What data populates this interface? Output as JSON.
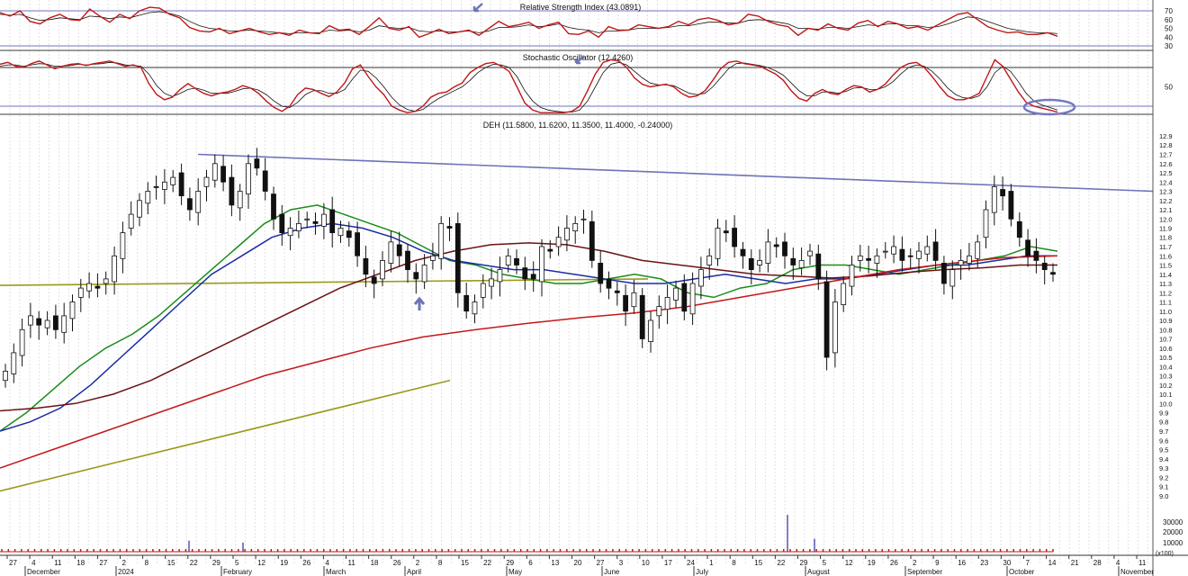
{
  "chart_data": [
    {
      "type": "line",
      "panel": "rsi",
      "title": "Relative Strength Index (43.0891)",
      "y_ticks": [
        70,
        60,
        50,
        40,
        30
      ],
      "ylim": [
        22,
        78
      ],
      "reference_lines": [
        70,
        30
      ],
      "series": [
        {
          "color": "#c01818",
          "values": [
            68,
            64,
            70,
            58,
            55,
            62,
            66,
            60,
            59,
            72,
            64,
            57,
            66,
            61,
            70,
            74,
            73,
            66,
            62,
            51,
            47,
            46,
            50,
            44,
            47,
            50,
            46,
            43,
            45,
            42,
            48,
            45,
            44,
            53,
            48,
            49,
            43,
            52,
            62,
            50,
            48,
            52,
            40,
            44,
            49,
            44,
            46,
            48,
            42,
            50,
            58,
            52,
            54,
            57,
            50,
            54,
            57,
            44,
            43,
            47,
            40,
            52,
            48,
            48,
            54,
            52,
            50,
            52,
            58,
            54,
            60,
            62,
            59,
            54,
            56,
            66,
            64,
            58,
            54,
            52,
            42,
            50,
            48,
            55,
            50,
            48,
            56,
            59,
            52,
            58,
            55,
            50,
            52,
            48,
            54,
            60,
            66,
            68,
            60,
            52,
            48,
            45,
            46,
            43,
            43,
            45,
            41
          ]
        },
        {
          "color": "#111111",
          "values": [
            66,
            65,
            66,
            62,
            59,
            60,
            62,
            61,
            60,
            64,
            63,
            61,
            63,
            62,
            65,
            68,
            69,
            67,
            64,
            58,
            53,
            50,
            49,
            47,
            47,
            48,
            47,
            46,
            45,
            44,
            45,
            45,
            45,
            48,
            47,
            48,
            46,
            48,
            53,
            51,
            50,
            51,
            47,
            46,
            47,
            46,
            46,
            47,
            45,
            47,
            51,
            51,
            52,
            54,
            52,
            53,
            55,
            51,
            49,
            48,
            45,
            47,
            47,
            48,
            50,
            50,
            50,
            51,
            53,
            53,
            55,
            57,
            57,
            56,
            56,
            59,
            60,
            59,
            57,
            55,
            50,
            50,
            49,
            51,
            51,
            50,
            52,
            54,
            53,
            55,
            55,
            53,
            53,
            51,
            52,
            55,
            59,
            63,
            62,
            58,
            54,
            50,
            48,
            46,
            45,
            45,
            44
          ]
        }
      ]
    },
    {
      "type": "line",
      "panel": "stochastic",
      "title": "Stochastic Oscillator (12.4260)",
      "y_ticks": [
        50
      ],
      "ylim": [
        7,
        93
      ],
      "reference_lines": [
        80,
        20
      ],
      "series": [
        {
          "color": "#c01818",
          "values": [
            85,
            88,
            82,
            80,
            86,
            90,
            84,
            78,
            82,
            85,
            86,
            83,
            86,
            88,
            90,
            86,
            82,
            84,
            80,
            55,
            38,
            30,
            34,
            46,
            55,
            47,
            40,
            36,
            40,
            42,
            46,
            52,
            48,
            40,
            28,
            18,
            12,
            20,
            38,
            48,
            46,
            40,
            35,
            42,
            56,
            78,
            84,
            66,
            50,
            38,
            20,
            14,
            10,
            12,
            20,
            34,
            40,
            42,
            50,
            56,
            72,
            80,
            86,
            88,
            82,
            74,
            50,
            25,
            14,
            10,
            10,
            10,
            10,
            12,
            20,
            44,
            70,
            88,
            92,
            90,
            80,
            64,
            54,
            50,
            52,
            54,
            50,
            40,
            34,
            36,
            44,
            60,
            78,
            88,
            90,
            86,
            84,
            82,
            76,
            70,
            60,
            44,
            32,
            28,
            40,
            46,
            40,
            38,
            46,
            52,
            50,
            42,
            46,
            54,
            68,
            80,
            86,
            88,
            80,
            66,
            50,
            36,
            30,
            30,
            34,
            40,
            66,
            92,
            82,
            62,
            42,
            26,
            20,
            17,
            14,
            11
          ]
        },
        {
          "color": "#111111",
          "values": [
            82,
            84,
            84,
            82,
            84,
            86,
            85,
            82,
            82,
            83,
            85,
            84,
            85,
            86,
            88,
            87,
            84,
            83,
            82,
            70,
            52,
            40,
            35,
            40,
            46,
            48,
            45,
            40,
            40,
            40,
            43,
            47,
            48,
            45,
            38,
            28,
            20,
            18,
            26,
            38,
            44,
            44,
            40,
            40,
            46,
            62,
            76,
            74,
            64,
            50,
            34,
            22,
            15,
            12,
            15,
            24,
            32,
            38,
            44,
            50,
            60,
            72,
            80,
            85,
            84,
            80,
            66,
            44,
            28,
            18,
            14,
            12,
            11,
            11,
            14,
            28,
            50,
            72,
            85,
            88,
            84,
            74,
            64,
            56,
            53,
            53,
            52,
            46,
            40,
            38,
            40,
            50,
            64,
            78,
            86,
            87,
            85,
            83,
            80,
            75,
            68,
            56,
            44,
            36,
            36,
            42,
            42,
            40,
            43,
            48,
            49,
            46,
            46,
            50,
            58,
            70,
            80,
            84,
            82,
            74,
            62,
            48,
            38,
            33,
            32,
            36,
            50,
            72,
            82,
            74,
            58,
            40,
            28,
            22,
            18,
            14
          ]
        }
      ]
    },
    {
      "type": "candlestick",
      "panel": "price",
      "title": "DEH (11.5800, 11.6200, 11.3500, 11.4000, -0.24000)",
      "ylim": [
        8.84,
        12.98
      ],
      "y_ticks": [
        "12.9",
        "12.8",
        "12.7",
        "12.6",
        "12.5",
        "12.4",
        "12.3",
        "12.2",
        "12.1",
        "12.0",
        "11.9",
        "11.8",
        "11.7",
        "11.6",
        "11.5",
        "11.4",
        "11.3",
        "11.2",
        "11.1",
        "11.0",
        "10.9",
        "10.8",
        "10.7",
        "10.6",
        "10.5",
        "10.4",
        "10.3",
        "10.2",
        "10.1",
        "10.0",
        "9.9",
        "9.8",
        "9.7",
        "9.6",
        "9.5",
        "9.4",
        "9.3",
        "9.2",
        "9.1",
        "9.0"
      ],
      "x_ticks": [
        "27",
        "4",
        "11",
        "18",
        "27",
        "2",
        "8",
        "15",
        "22",
        "29",
        "5",
        "12",
        "19",
        "26",
        "4",
        "11",
        "18",
        "26",
        "2",
        "8",
        "15",
        "22",
        "29",
        "6",
        "13",
        "20",
        "27",
        "3",
        "10",
        "17",
        "24",
        "1",
        "8",
        "15",
        "22",
        "29",
        "5",
        "12",
        "19",
        "26",
        "2",
        "9",
        "16",
        "23",
        "30",
        "7",
        "14",
        "21",
        "28",
        "4",
        "11"
      ],
      "month_labels": [
        "December",
        "2024",
        "February",
        "March",
        "April",
        "May",
        "June",
        "July",
        "August",
        "September",
        "October",
        "November"
      ],
      "closes": [
        10.35,
        10.55,
        10.8,
        10.95,
        10.85,
        10.9,
        10.8,
        10.95,
        11.1,
        11.25,
        11.3,
        11.25,
        11.35,
        11.6,
        11.85,
        12.05,
        12.2,
        12.3,
        12.35,
        12.4,
        12.45,
        12.25,
        12.1,
        12.3,
        12.45,
        12.6,
        12.4,
        12.15,
        12.3,
        12.6,
        12.55,
        12.3,
        12.0,
        11.85,
        11.9,
        11.95,
        12.0,
        11.95,
        12.05,
        11.85,
        11.9,
        11.8,
        11.6,
        11.4,
        11.3,
        11.55,
        11.75,
        11.6,
        11.45,
        11.35,
        11.5,
        11.6,
        11.95,
        11.9,
        11.2,
        11.0,
        11.1,
        11.3,
        11.35,
        11.45,
        11.6,
        11.5,
        11.35,
        11.35,
        11.7,
        11.65,
        11.8,
        11.9,
        11.95,
        12.0,
        11.55,
        11.3,
        11.25,
        11.2,
        11.0,
        11.2,
        10.7,
        10.9,
        11.05,
        11.15,
        11.25,
        11.0,
        11.3,
        11.45,
        11.6,
        11.9,
        11.85,
        11.7,
        11.6,
        11.45,
        11.55,
        11.75,
        11.7,
        11.6,
        11.5,
        11.55,
        11.65,
        11.35,
        10.5,
        11.1,
        11.3,
        11.5,
        11.6,
        11.55,
        11.6,
        11.65,
        11.7,
        11.55,
        11.6,
        11.65,
        11.7,
        11.55,
        11.3,
        11.45,
        11.55,
        11.6,
        11.75,
        12.1,
        12.35,
        12.25,
        12.0,
        11.8,
        11.6,
        11.55,
        11.45,
        11.4
      ],
      "series": [
        {
          "color": "#1a8c1a",
          "values": [
            9.7,
            9.9,
            10.15,
            10.4,
            10.6,
            10.75,
            10.95,
            11.2,
            11.45,
            11.7,
            11.95,
            12.1,
            12.15,
            12.05,
            11.95,
            11.85,
            11.7,
            11.55,
            11.5,
            11.4,
            11.35,
            11.3,
            11.3,
            11.35,
            11.4,
            11.35,
            11.2,
            11.15,
            11.25,
            11.3,
            11.45,
            11.5,
            11.5,
            11.45,
            11.4,
            11.45,
            11.5,
            11.55,
            11.6,
            11.7,
            11.65
          ]
        },
        {
          "color": "#1a2ca0",
          "values": [
            9.7,
            9.8,
            9.95,
            10.2,
            10.5,
            10.8,
            11.1,
            11.4,
            11.6,
            11.8,
            11.9,
            11.95,
            11.9,
            11.8,
            11.65,
            11.55,
            11.5,
            11.45,
            11.45,
            11.4,
            11.35,
            11.3,
            11.3,
            11.35,
            11.4,
            11.35,
            11.3,
            11.35,
            11.35,
            11.4,
            11.45,
            11.5,
            11.5,
            11.55,
            11.6,
            11.6
          ]
        },
        {
          "color": "#6b1212",
          "values": [
            9.92,
            9.95,
            10.0,
            10.1,
            10.25,
            10.45,
            10.65,
            10.85,
            11.05,
            11.25,
            11.4,
            11.55,
            11.65,
            11.72,
            11.74,
            11.72,
            11.65,
            11.55,
            11.5,
            11.45,
            11.4,
            11.38,
            11.36,
            11.38,
            11.42,
            11.45,
            11.47,
            11.5,
            11.5
          ]
        },
        {
          "color": "#c41818",
          "values": [
            9.3,
            9.5,
            9.7,
            9.9,
            10.1,
            10.3,
            10.45,
            10.6,
            10.72,
            10.8,
            10.87,
            10.93,
            10.98,
            11.05,
            11.15,
            11.25,
            11.35,
            11.45,
            11.52,
            11.58,
            11.6
          ]
        }
      ],
      "annotations": [
        {
          "type": "trendline",
          "color": "#6e72b8",
          "from": 12.7,
          "to": 12.3
        },
        {
          "type": "trendline",
          "color": "#9a9a1c",
          "from": 11.28,
          "to": 11.35
        },
        {
          "type": "trendline",
          "color": "#9a9a1c",
          "from": 9.05,
          "to": 10.25
        }
      ]
    },
    {
      "type": "bar",
      "panel": "volume",
      "y_ticks": [
        "30000",
        "20000",
        "10000"
      ],
      "unit_label": "(x100)",
      "spikes": [
        0.25,
        1.0,
        0.35,
        0.3
      ]
    }
  ]
}
